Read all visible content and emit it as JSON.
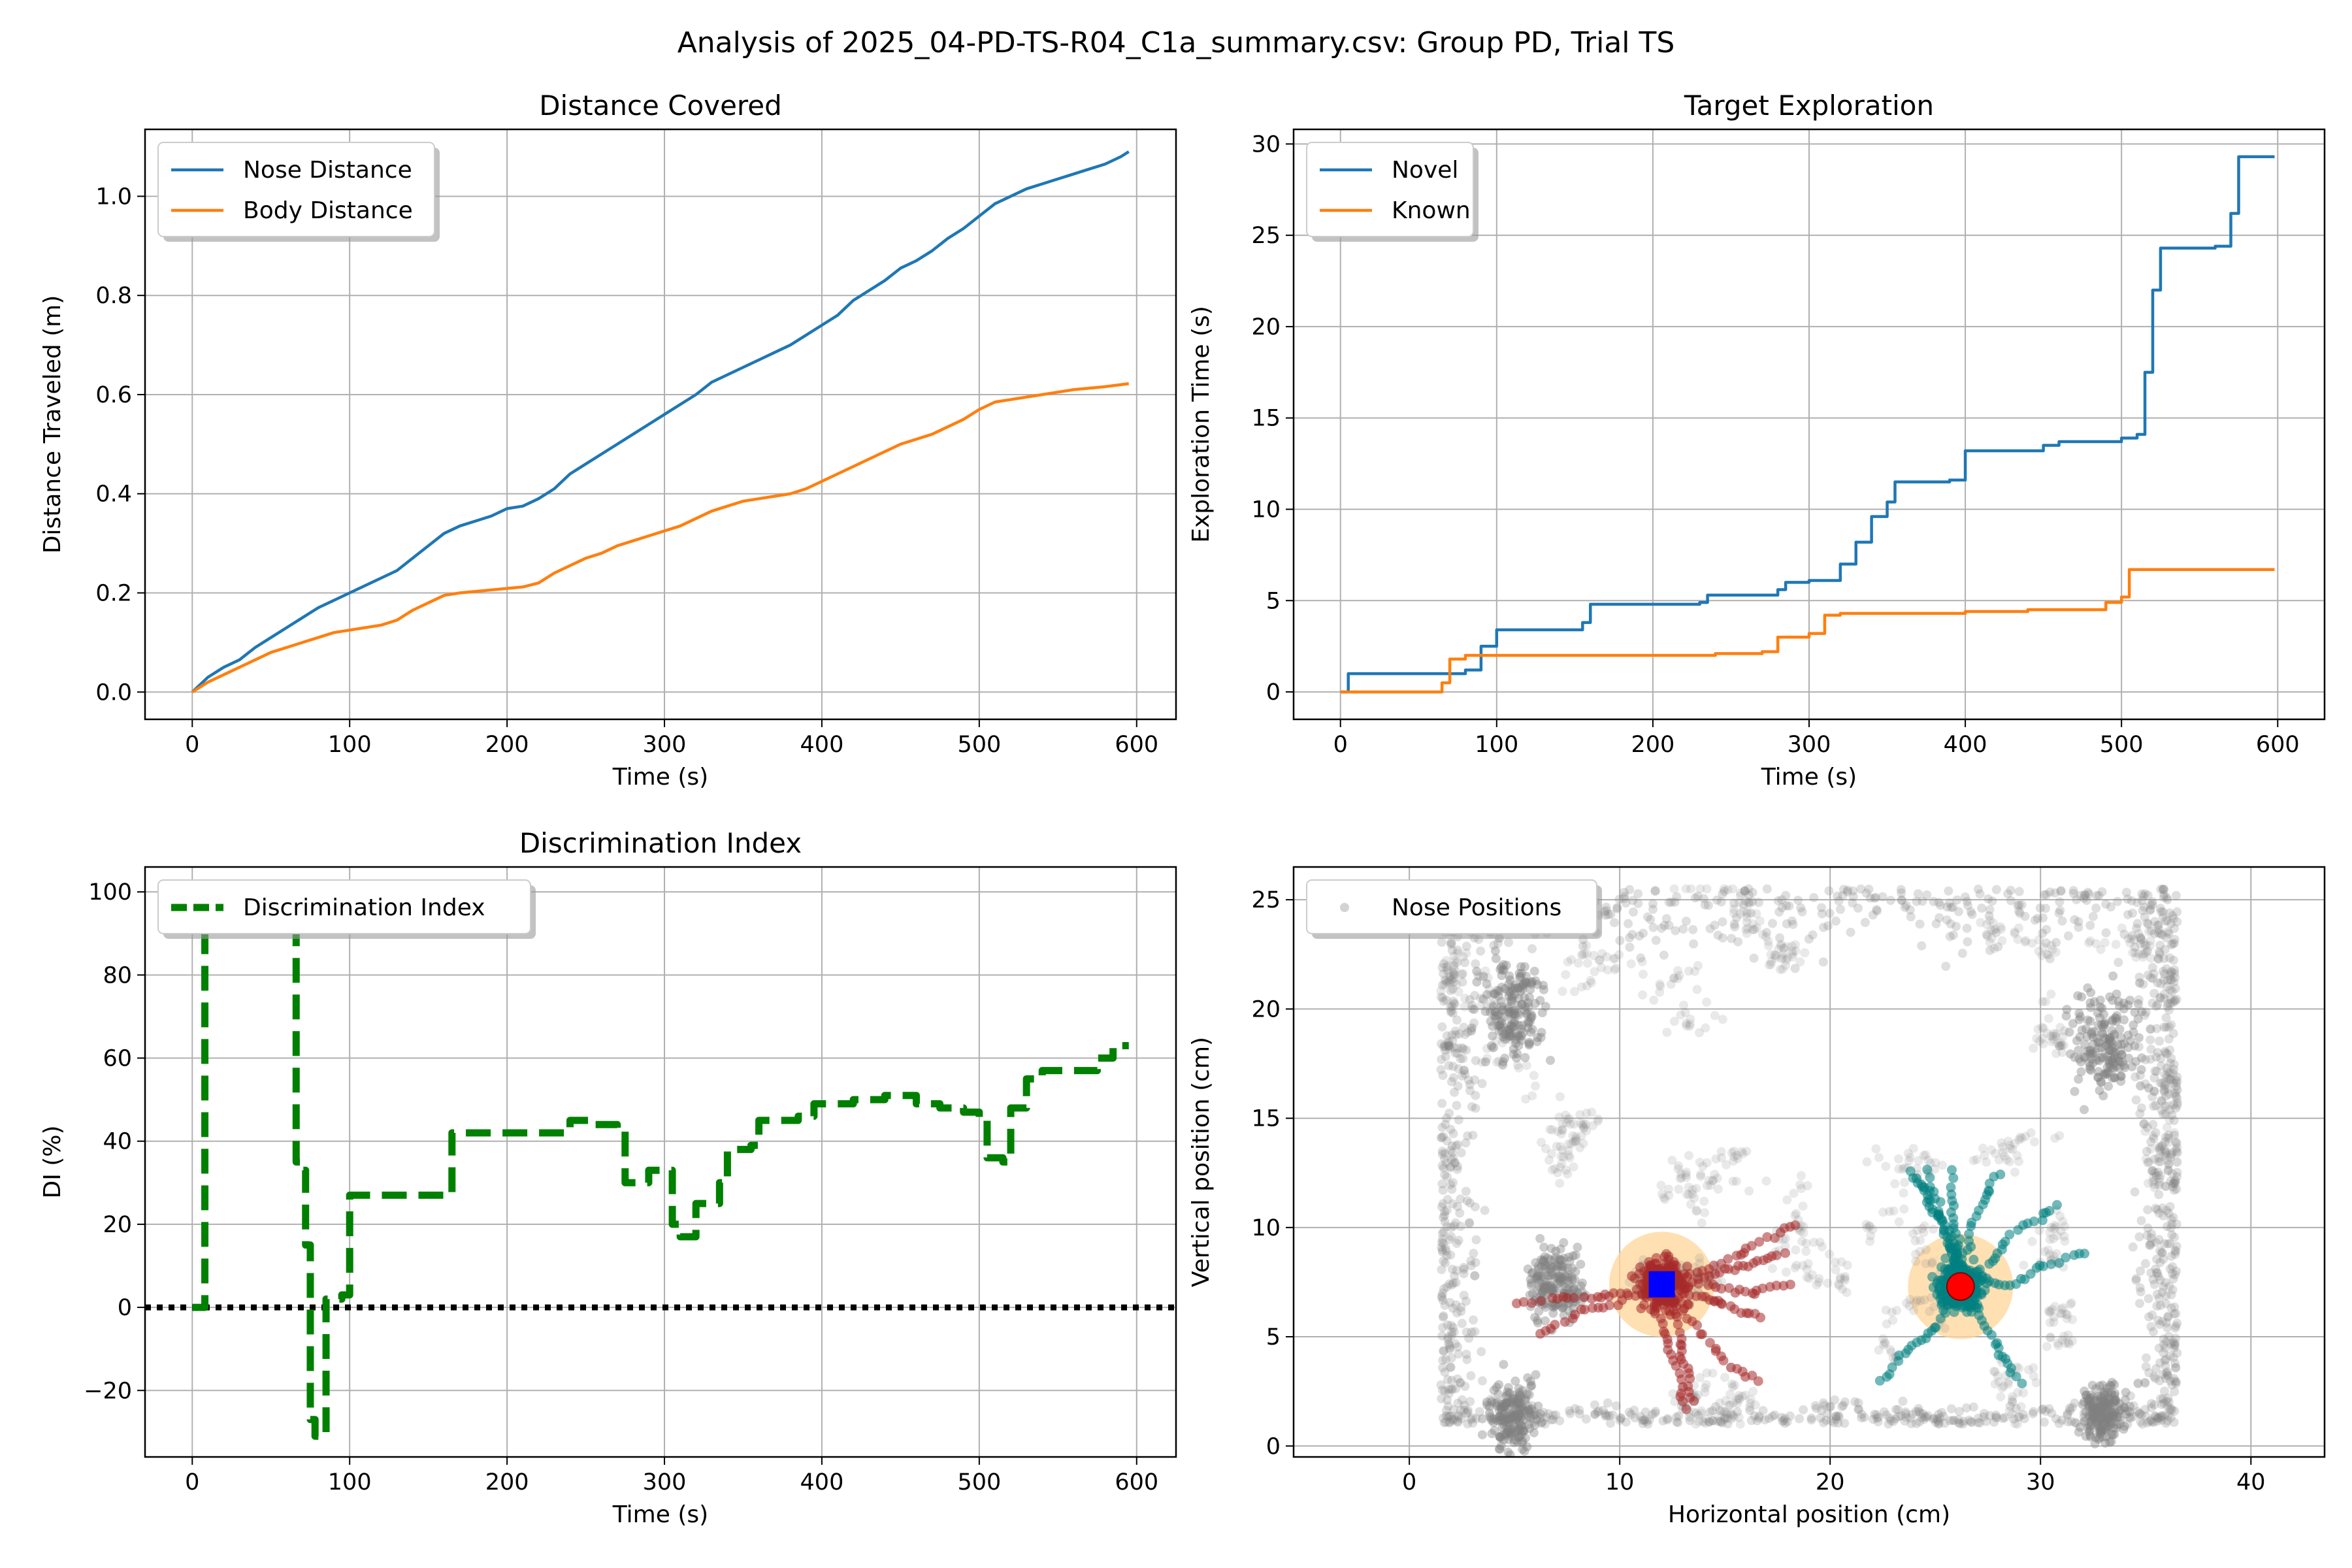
{
  "figure_title": "Analysis of 2025_04-PD-TS-R04_C1a_summary.csv: Group PD, Trial TS",
  "chart_data": [
    {
      "type": "line",
      "title": "Distance Covered",
      "xlabel": "Time (s)",
      "ylabel": "Distance Traveled (m)",
      "xlim": [
        -30,
        625
      ],
      "ylim": [
        -0.055,
        1.135
      ],
      "xticks": [
        0,
        100,
        200,
        300,
        400,
        500,
        600
      ],
      "xtick_labels": [
        "0",
        "100",
        "200",
        "300",
        "400",
        "500",
        "600"
      ],
      "yticks": [
        0.0,
        0.2,
        0.4,
        0.6,
        0.8,
        1.0
      ],
      "ytick_labels": [
        "0.0",
        "0.2",
        "0.4",
        "0.6",
        "0.8",
        "1.0"
      ],
      "grid": true,
      "legend": "upper left",
      "series": [
        {
          "name": "Nose Distance",
          "color": "#1f77b4",
          "x": [
            0,
            10,
            20,
            30,
            40,
            50,
            60,
            70,
            80,
            90,
            100,
            110,
            120,
            130,
            140,
            150,
            160,
            170,
            180,
            190,
            200,
            210,
            220,
            230,
            240,
            250,
            260,
            270,
            280,
            290,
            300,
            310,
            320,
            330,
            340,
            350,
            360,
            370,
            380,
            390,
            400,
            410,
            420,
            430,
            440,
            450,
            460,
            470,
            480,
            490,
            500,
            510,
            520,
            530,
            540,
            550,
            560,
            570,
            580,
            590,
            595
          ],
          "y": [
            0.0,
            0.03,
            0.05,
            0.065,
            0.09,
            0.11,
            0.13,
            0.15,
            0.17,
            0.185,
            0.2,
            0.215,
            0.23,
            0.245,
            0.27,
            0.295,
            0.32,
            0.335,
            0.345,
            0.355,
            0.37,
            0.375,
            0.39,
            0.41,
            0.44,
            0.46,
            0.48,
            0.5,
            0.52,
            0.54,
            0.56,
            0.58,
            0.6,
            0.625,
            0.64,
            0.655,
            0.67,
            0.685,
            0.7,
            0.72,
            0.74,
            0.76,
            0.79,
            0.81,
            0.83,
            0.855,
            0.87,
            0.89,
            0.915,
            0.935,
            0.96,
            0.985,
            1.0,
            1.015,
            1.025,
            1.035,
            1.045,
            1.055,
            1.065,
            1.08,
            1.09
          ]
        },
        {
          "name": "Body Distance",
          "color": "#ff7f0e",
          "x": [
            0,
            10,
            20,
            30,
            40,
            50,
            60,
            70,
            80,
            90,
            100,
            110,
            120,
            130,
            140,
            150,
            160,
            170,
            180,
            190,
            200,
            210,
            220,
            230,
            240,
            250,
            260,
            270,
            280,
            290,
            300,
            310,
            320,
            330,
            340,
            350,
            360,
            370,
            380,
            390,
            400,
            410,
            420,
            430,
            440,
            450,
            460,
            470,
            480,
            490,
            500,
            510,
            520,
            530,
            540,
            550,
            560,
            570,
            580,
            590,
            595
          ],
          "y": [
            0.0,
            0.02,
            0.035,
            0.05,
            0.065,
            0.08,
            0.09,
            0.1,
            0.11,
            0.12,
            0.125,
            0.13,
            0.135,
            0.145,
            0.165,
            0.18,
            0.195,
            0.2,
            0.203,
            0.206,
            0.209,
            0.212,
            0.22,
            0.24,
            0.255,
            0.27,
            0.28,
            0.295,
            0.305,
            0.315,
            0.325,
            0.335,
            0.35,
            0.365,
            0.375,
            0.385,
            0.39,
            0.395,
            0.4,
            0.41,
            0.425,
            0.44,
            0.455,
            0.47,
            0.485,
            0.5,
            0.51,
            0.52,
            0.535,
            0.55,
            0.57,
            0.585,
            0.59,
            0.595,
            0.6,
            0.605,
            0.61,
            0.613,
            0.616,
            0.62,
            0.622
          ]
        }
      ]
    },
    {
      "type": "line",
      "title": "Target Exploration",
      "xlabel": "Time (s)",
      "ylabel": "Exploration Time (s)",
      "xlim": [
        -30,
        630
      ],
      "ylim": [
        -1.5,
        30.8
      ],
      "xticks": [
        0,
        100,
        200,
        300,
        400,
        500,
        600
      ],
      "xtick_labels": [
        "0",
        "100",
        "200",
        "300",
        "400",
        "500",
        "600"
      ],
      "yticks": [
        0,
        5,
        10,
        15,
        20,
        25,
        30
      ],
      "ytick_labels": [
        "0",
        "5",
        "10",
        "15",
        "20",
        "25",
        "30"
      ],
      "grid": true,
      "legend": "upper left",
      "series": [
        {
          "name": "Novel",
          "color": "#1f77b4",
          "step": true,
          "x": [
            0,
            5,
            80,
            90,
            100,
            155,
            160,
            230,
            235,
            280,
            285,
            300,
            320,
            330,
            340,
            350,
            355,
            390,
            400,
            410,
            450,
            460,
            500,
            510,
            515,
            520,
            525,
            560,
            570,
            575,
            598
          ],
          "y": [
            0,
            1.0,
            1.2,
            2.5,
            3.4,
            3.8,
            4.8,
            4.9,
            5.3,
            5.6,
            6.0,
            6.1,
            7.0,
            8.2,
            9.6,
            10.4,
            11.5,
            11.6,
            13.2,
            13.2,
            13.5,
            13.7,
            13.9,
            14.1,
            17.5,
            22.0,
            24.3,
            24.4,
            26.2,
            29.3,
            29.3
          ]
        },
        {
          "name": "Known",
          "color": "#ff7f0e",
          "step": true,
          "x": [
            0,
            60,
            65,
            70,
            80,
            100,
            150,
            240,
            270,
            280,
            300,
            310,
            320,
            400,
            440,
            450,
            490,
            500,
            505,
            598
          ],
          "y": [
            0,
            0,
            0.5,
            1.8,
            2.0,
            2.0,
            2.0,
            2.1,
            2.2,
            3.0,
            3.2,
            4.2,
            4.3,
            4.4,
            4.5,
            4.5,
            4.9,
            5.2,
            6.7,
            6.7
          ]
        }
      ]
    },
    {
      "type": "line",
      "title": "Discrimination Index",
      "xlabel": "Time (s)",
      "ylabel": "DI (%)",
      "xlim": [
        -30,
        625
      ],
      "ylim": [
        -36,
        106
      ],
      "xticks": [
        0,
        100,
        200,
        300,
        400,
        500,
        600
      ],
      "xtick_labels": [
        "0",
        "100",
        "200",
        "300",
        "400",
        "500",
        "600"
      ],
      "yticks": [
        -20,
        0,
        20,
        40,
        60,
        80,
        100
      ],
      "ytick_labels": [
        "−20",
        "0",
        "20",
        "40",
        "60",
        "80",
        "100"
      ],
      "grid": true,
      "legend": "upper left",
      "reference_line": 0,
      "series": [
        {
          "name": "Discrimination Index",
          "color": "#008000",
          "dashed": true,
          "step": true,
          "x": [
            0,
            5,
            8,
            62,
            66,
            70,
            72,
            75,
            78,
            85,
            95,
            100,
            160,
            165,
            240,
            255,
            270,
            275,
            290,
            300,
            305,
            310,
            320,
            335,
            340,
            345,
            355,
            360,
            385,
            395,
            420,
            440,
            460,
            475,
            490,
            500,
            505,
            515,
            520,
            530,
            540,
            560,
            575,
            585,
            595
          ],
          "y": [
            0,
            0,
            100,
            100,
            35,
            33,
            15,
            -27,
            -31,
            2,
            3,
            27,
            27,
            42,
            45,
            44,
            43,
            30,
            33,
            33,
            20,
            17,
            25,
            30,
            38,
            38,
            39,
            45,
            46,
            49,
            50,
            51,
            49,
            48,
            47,
            45,
            36,
            35,
            48,
            55,
            57,
            57,
            60,
            63,
            63
          ]
        }
      ]
    },
    {
      "type": "scatter",
      "title": "",
      "xlabel": "Horizontal position (cm)",
      "ylabel": "Vertical position (cm)",
      "xlim": [
        -5.5,
        43.5
      ],
      "ylim": [
        -0.5,
        26.5
      ],
      "xticks": [
        0,
        10,
        20,
        30,
        40
      ],
      "xtick_labels": [
        "0",
        "10",
        "20",
        "30",
        "40"
      ],
      "yticks": [
        0,
        5,
        10,
        15,
        20,
        25
      ],
      "ytick_labels": [
        "0",
        "5",
        "10",
        "15",
        "20",
        "25"
      ],
      "grid": true,
      "legend": "upper left",
      "series": [
        {
          "name": "Nose Positions",
          "color": "#808080",
          "opacity": 0.25,
          "arena_x": [
            1.5,
            36.5
          ],
          "arena_y": [
            1.0,
            25.5
          ],
          "hotspots": [
            {
              "x": 33,
              "y": 18.5,
              "spread": 2.0
            },
            {
              "x": 33,
              "y": 1.5,
              "spread": 1.2
            },
            {
              "x": 5,
              "y": 1.3,
              "spread": 1.5
            },
            {
              "x": 5,
              "y": 20,
              "spread": 2.0
            },
            {
              "x": 7,
              "y": 7.5,
              "spread": 1.5
            }
          ]
        },
        {
          "name": "",
          "color": "#a52a2a",
          "opacity": 0.55,
          "center": [
            12,
            7.4
          ],
          "reach": 6.5
        },
        {
          "name": "",
          "color": "#008080",
          "opacity": 0.55,
          "center": [
            26.2,
            7.3
          ],
          "reach": 6.0
        }
      ],
      "markers": [
        {
          "shape": "square",
          "x": 12.0,
          "y": 7.4,
          "color": "#0000ff"
        },
        {
          "shape": "circle",
          "x": 26.2,
          "y": 7.3,
          "color": "#ff0000"
        }
      ],
      "zones": [
        {
          "x": 12.0,
          "y": 7.4,
          "radius_cm": 2.5,
          "color": "#ffd699"
        },
        {
          "x": 26.2,
          "y": 7.3,
          "radius_cm": 2.5,
          "color": "#ffd699"
        }
      ]
    }
  ]
}
